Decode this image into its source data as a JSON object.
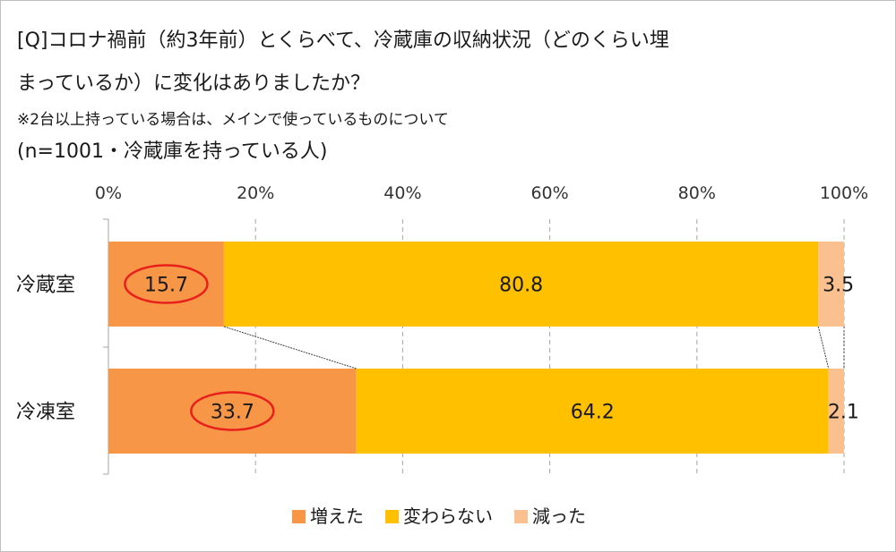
{
  "chart_data": {
    "type": "bar",
    "stacked": true,
    "orientation": "horizontal",
    "percent_axis": true,
    "title_lines": [
      "[Q]コロナ禍前（約3年前）とくらべて、冷蔵庫の収納状況（どのくらい埋",
      "まっているか）に変化はありましたか？",
      "※2台以上持っている場合は、メインで使っているものについて",
      "(n=1001・冷蔵庫を持っている人)"
    ],
    "categories": [
      "冷蔵室",
      "冷凍室"
    ],
    "series": [
      {
        "name": "増えた",
        "color": "#F79646",
        "values": [
          15.7,
          33.7
        ]
      },
      {
        "name": "変わらない",
        "color": "#FFC000",
        "values": [
          80.8,
          64.2
        ]
      },
      {
        "name": "減った",
        "color": "#FAC090",
        "values": [
          3.5,
          2.1
        ]
      }
    ],
    "x_ticks": [
      "0%",
      "20%",
      "40%",
      "60%",
      "80%",
      "100%"
    ],
    "xlim": [
      0,
      100
    ],
    "grid": "vertical dashed",
    "legend_position": "bottom",
    "highlighted_series": "増えた",
    "highlight_color": "#E8201C"
  }
}
